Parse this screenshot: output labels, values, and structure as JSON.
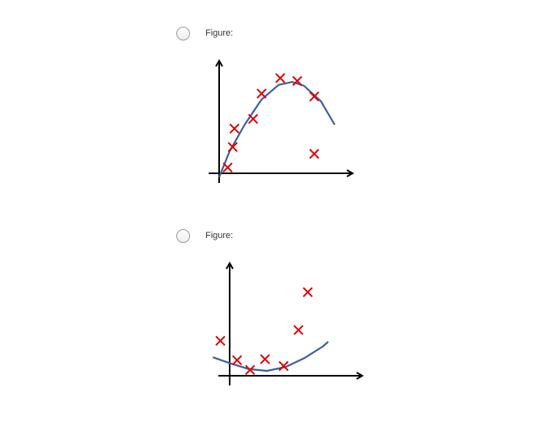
{
  "options": [
    {
      "label": "Figure:",
      "selected": false,
      "chart_data": {
        "type": "scatter",
        "title": "",
        "xlabel": "",
        "ylabel": "",
        "xlim": [
          0,
          10
        ],
        "ylim": [
          0,
          10
        ],
        "grid": false,
        "legend": "none",
        "points": [
          [
            0.5,
            0.6
          ],
          [
            0.8,
            2.7
          ],
          [
            0.9,
            4.6
          ],
          [
            2.0,
            5.6
          ],
          [
            2.5,
            8.2
          ],
          [
            3.6,
            9.8
          ],
          [
            4.6,
            9.5
          ],
          [
            5.6,
            7.9
          ],
          [
            5.6,
            2.0
          ]
        ],
        "curve": [
          [
            0.0,
            -0.4
          ],
          [
            0.6,
            2.2
          ],
          [
            1.5,
            5.0
          ],
          [
            2.5,
            7.6
          ],
          [
            3.5,
            9.1
          ],
          [
            4.3,
            9.4
          ],
          [
            5.0,
            9.0
          ],
          [
            6.0,
            7.4
          ],
          [
            6.8,
            5.0
          ]
        ],
        "colors": {
          "marker": "#e00000",
          "curve": "#3d5f9a",
          "axis": "#000000"
        }
      }
    },
    {
      "label": "Figure:",
      "selected": false,
      "chart_data": {
        "type": "scatter",
        "title": "",
        "xlabel": "",
        "ylabel": "",
        "xlim": [
          0,
          10
        ],
        "ylim": [
          0,
          10
        ],
        "grid": false,
        "legend": "none",
        "points": [
          [
            -0.5,
            3.6
          ],
          [
            0.4,
            1.6
          ],
          [
            1.1,
            0.6
          ],
          [
            1.9,
            1.7
          ],
          [
            2.9,
            1.0
          ],
          [
            3.7,
            4.7
          ],
          [
            4.2,
            8.6
          ]
        ],
        "curve": [
          [
            -0.9,
            1.9
          ],
          [
            0.0,
            1.3
          ],
          [
            1.0,
            0.7
          ],
          [
            2.0,
            0.5
          ],
          [
            3.0,
            0.9
          ],
          [
            4.0,
            1.8
          ],
          [
            5.0,
            3.0
          ],
          [
            5.3,
            3.5
          ]
        ],
        "colors": {
          "marker": "#e00000",
          "curve": "#3d5f9a",
          "axis": "#000000"
        }
      }
    }
  ]
}
